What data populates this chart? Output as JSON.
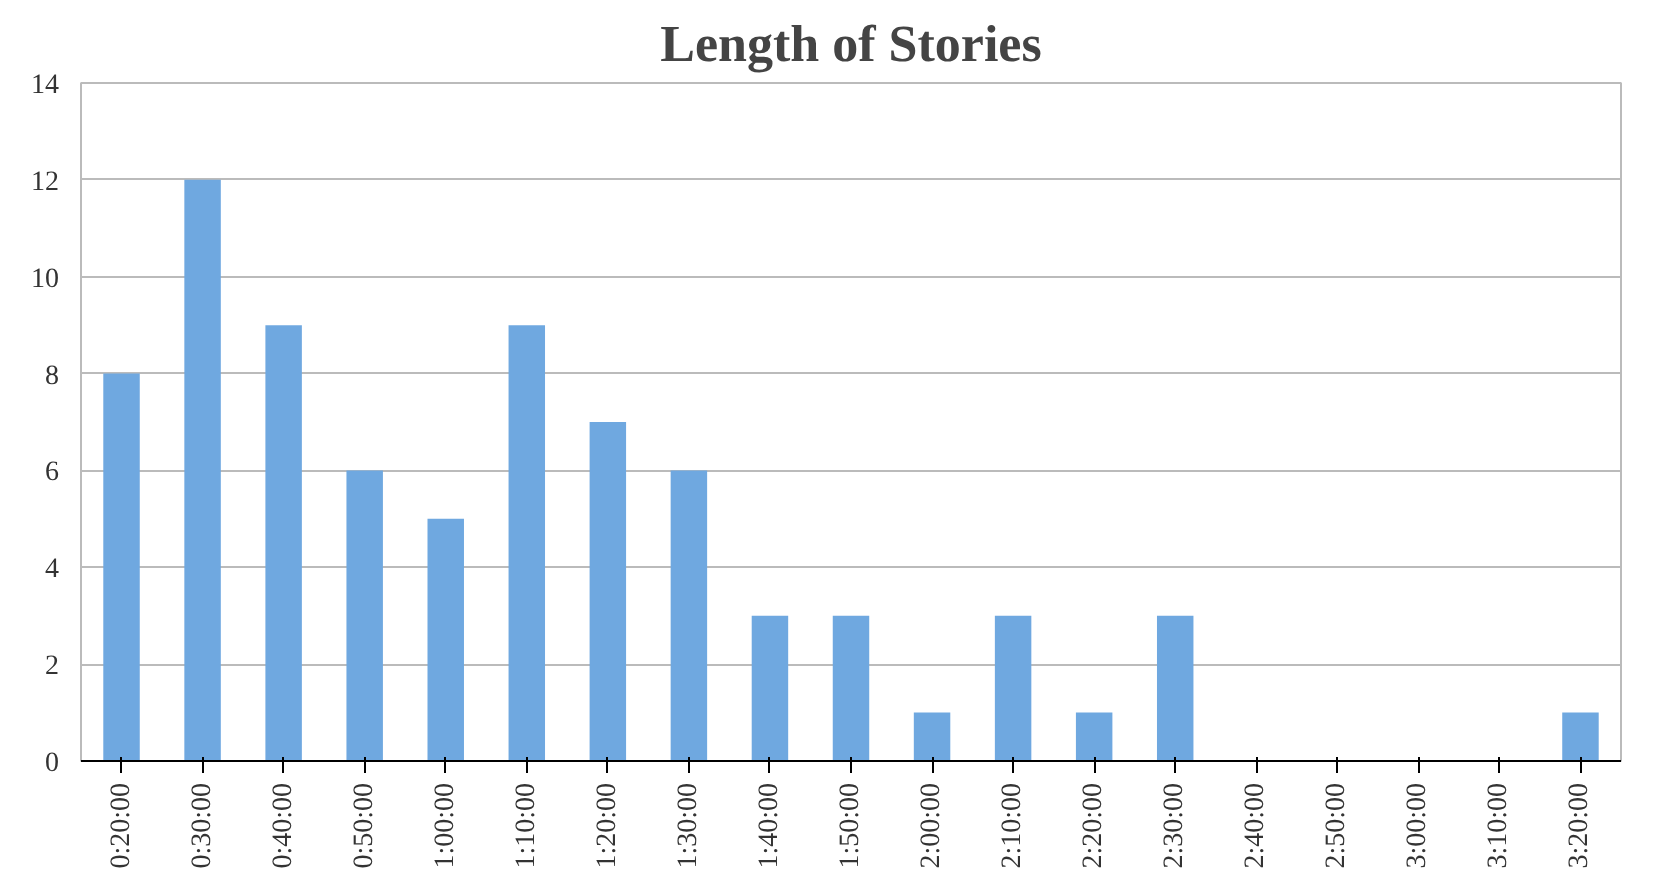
{
  "chart_data": {
    "type": "bar",
    "title": "Length of Stories",
    "categories": [
      "0:20:00",
      "0:30:00",
      "0:40:00",
      "0:50:00",
      "1:00:00",
      "1:10:00",
      "1:20:00",
      "1:30:00",
      "1:40:00",
      "1:50:00",
      "2:00:00",
      "2:10:00",
      "2:20:00",
      "2:30:00",
      "2:40:00",
      "2:50:00",
      "3:00:00",
      "3:10:00",
      "3:20:00"
    ],
    "values": [
      8,
      12,
      9,
      6,
      5,
      9,
      7,
      6,
      3,
      3,
      1,
      3,
      1,
      3,
      0,
      0,
      0,
      0,
      1
    ],
    "color": "#6fa8e0",
    "ylim": [
      0,
      14
    ],
    "yticks": [
      0,
      2,
      4,
      6,
      8,
      10,
      12,
      14
    ],
    "grid": "y"
  }
}
